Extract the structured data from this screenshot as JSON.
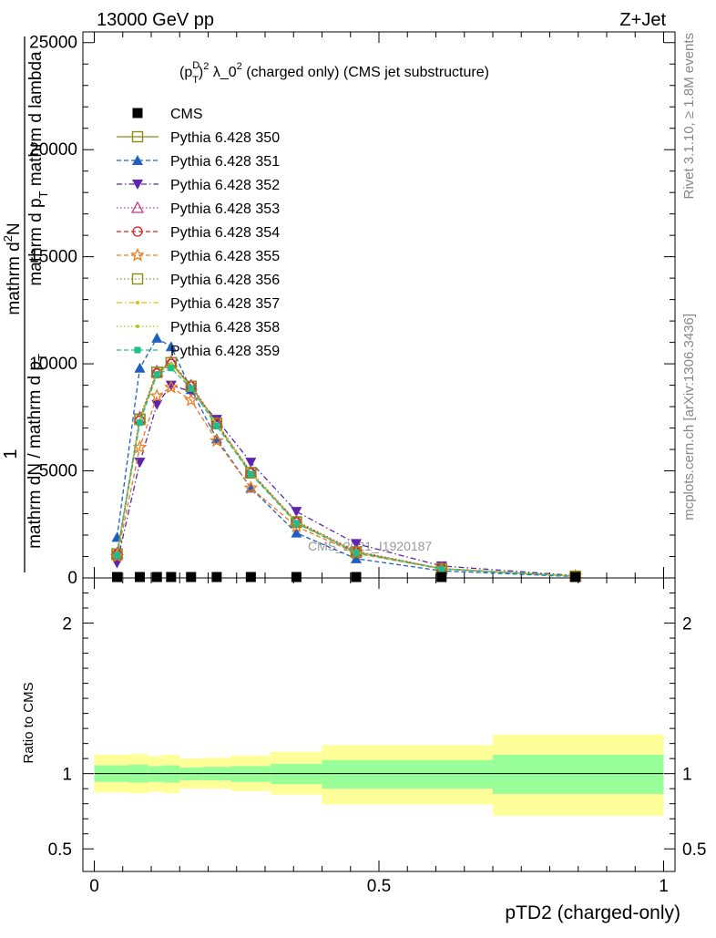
{
  "header": {
    "left": "13000 GeV pp",
    "right": "Z+Jet"
  },
  "side_labels": {
    "rivet": "Rivet 3.1.10, ≥ 1.8M events",
    "mcplots": "mcplots.cern.ch [arXiv:1306.3436]"
  },
  "watermark": "CMS_2021_I1920187",
  "chart_data": [
    {
      "type": "line",
      "title": "(p_T^D)^2 λ_0^2 (charged only) (CMS jet substructure)",
      "title_parts": {
        "open": "(p",
        "sup": "D",
        "sub": "T",
        "close": ")",
        "sup2": "2",
        "mid": " λ_0",
        "sup3": "2",
        "rest": " (charged only) (CMS jet substructure)"
      },
      "ylabel": "1 / mathrm dN / mathrm d p_T mathrm d p_T mathrm d lambda mathrm d^2N",
      "ylabel_parts": {
        "one": "1",
        "den": "mathrm dN / mathrm d p",
        "sub": "T",
        "num_a": "mathrm d",
        "num_sup": "2",
        "num_b": "N",
        "num_c": "mathrm d p",
        "num_sub": "T",
        "num_d": " mathrm d lambda"
      },
      "ylim": [
        0,
        25500
      ],
      "xlim": [
        -0.02,
        1.02
      ],
      "y_ticks": [
        0,
        5000,
        10000,
        15000,
        20000,
        25000
      ],
      "y_tick_labels": [
        "0",
        "5000",
        "10000",
        "15000",
        "20000",
        "25000"
      ],
      "legend_position": "top-left",
      "series": [
        {
          "name": "CMS",
          "color": "#000000",
          "marker": "filled-square",
          "line": "none",
          "x": [
            0.04,
            0.08,
            0.11,
            0.135,
            0.17,
            0.215,
            0.275,
            0.355,
            0.46,
            0.61,
            0.845
          ],
          "y": [
            0,
            0,
            0,
            0,
            0,
            0,
            0,
            0,
            0,
            0,
            0
          ]
        },
        {
          "name": "Pythia 6.428 350",
          "color": "#8c8c1a",
          "marker": "open-square",
          "line": "solid",
          "x": [
            0.04,
            0.08,
            0.11,
            0.135,
            0.17,
            0.215,
            0.275,
            0.355,
            0.46,
            0.61,
            0.845
          ],
          "y": [
            1100,
            7400,
            9600,
            10050,
            8950,
            7200,
            4900,
            2600,
            1200,
            430,
            80
          ]
        },
        {
          "name": "Pythia 6.428 351",
          "color": "#1f5fbf",
          "marker": "filled-triangle-up",
          "line": "dashed",
          "x": [
            0.04,
            0.08,
            0.11,
            0.135,
            0.17,
            0.215,
            0.275,
            0.355,
            0.46,
            0.61,
            0.845
          ],
          "y": [
            1900,
            9800,
            11200,
            10800,
            8800,
            6500,
            4200,
            2100,
            900,
            330,
            60
          ]
        },
        {
          "name": "Pythia 6.428 352",
          "color": "#5a26b0",
          "marker": "filled-triangle-down",
          "line": "dashdot",
          "x": [
            0.04,
            0.08,
            0.11,
            0.135,
            0.17,
            0.215,
            0.275,
            0.355,
            0.46,
            0.61,
            0.845
          ],
          "y": [
            700,
            5400,
            8100,
            9000,
            8700,
            7400,
            5400,
            3100,
            1600,
            560,
            110
          ]
        },
        {
          "name": "Pythia 6.428 353",
          "color": "#c7358f",
          "marker": "open-triangle-up",
          "line": "dotted",
          "x": [
            0.04,
            0.08,
            0.11,
            0.135,
            0.17,
            0.215,
            0.275,
            0.355,
            0.46,
            0.61,
            0.845
          ],
          "y": [
            1150,
            7500,
            9650,
            10100,
            9000,
            7250,
            4950,
            2650,
            1250,
            440,
            85
          ]
        },
        {
          "name": "Pythia 6.428 354",
          "color": "#d42020",
          "marker": "open-circle",
          "line": "dashed",
          "x": [
            0.04,
            0.08,
            0.11,
            0.135,
            0.17,
            0.215,
            0.275,
            0.355,
            0.46,
            0.61,
            0.845
          ],
          "y": [
            1100,
            7350,
            9550,
            10000,
            8950,
            7200,
            4900,
            2600,
            1200,
            430,
            80
          ]
        },
        {
          "name": "Pythia 6.428 355",
          "color": "#ef7a1f",
          "marker": "open-star",
          "line": "dashed",
          "x": [
            0.04,
            0.08,
            0.11,
            0.135,
            0.17,
            0.215,
            0.275,
            0.355,
            0.46,
            0.61,
            0.845
          ],
          "y": [
            1000,
            6100,
            8500,
            8900,
            8300,
            6400,
            4200,
            2400,
            1150,
            420,
            80
          ]
        },
        {
          "name": "Pythia 6.428 356",
          "color": "#8c8c1a",
          "marker": "open-square",
          "line": "dotted",
          "x": [
            0.04,
            0.08,
            0.11,
            0.135,
            0.17,
            0.215,
            0.275,
            0.355,
            0.46,
            0.61,
            0.845
          ],
          "y": [
            1120,
            7420,
            9600,
            10050,
            8950,
            7220,
            4920,
            2620,
            1220,
            435,
            80
          ]
        },
        {
          "name": "Pythia 6.428 357",
          "color": "#d9c21a",
          "marker": "small-dot",
          "line": "dashdot",
          "x": [
            0.04,
            0.08,
            0.11,
            0.135,
            0.17,
            0.215,
            0.275,
            0.355,
            0.46,
            0.61,
            0.845
          ],
          "y": [
            1100,
            7350,
            9550,
            10000,
            8900,
            7200,
            4900,
            2600,
            1200,
            430,
            80
          ]
        },
        {
          "name": "Pythia 6.428 358",
          "color": "#a8cc1f",
          "marker": "small-dot",
          "line": "dotted",
          "x": [
            0.04,
            0.08,
            0.11,
            0.135,
            0.17,
            0.215,
            0.275,
            0.355,
            0.46,
            0.61,
            0.845
          ],
          "y": [
            1100,
            7350,
            9550,
            10000,
            8900,
            7200,
            4900,
            2600,
            1200,
            430,
            80
          ]
        },
        {
          "name": "Pythia 6.428 359",
          "color": "#1fbf8c",
          "marker": "filled-square-small",
          "line": "dashed",
          "x": [
            0.04,
            0.08,
            0.11,
            0.135,
            0.17,
            0.215,
            0.275,
            0.355,
            0.46,
            0.61,
            0.845
          ],
          "y": [
            1050,
            7250,
            9500,
            9800,
            8850,
            7100,
            4850,
            2550,
            1180,
            420,
            78
          ]
        }
      ]
    },
    {
      "type": "area",
      "xlabel": "pTD2 (charged-only)",
      "ylabel": "Ratio to CMS",
      "ylim": [
        0.35,
        2.3
      ],
      "xlim": [
        -0.02,
        1.02
      ],
      "y_ticks": [
        0.5,
        1,
        2
      ],
      "y_tick_labels": [
        "0.5",
        "1",
        "2"
      ],
      "x_ticks": [
        0,
        0.5,
        1
      ],
      "x_tick_labels": [
        "0",
        "0.5",
        "1"
      ],
      "reference": 1,
      "bins": [
        {
          "x0": 0.0,
          "x1": 0.06,
          "inner": [
            0.945,
            1.055
          ],
          "outer": [
            0.875,
            1.125
          ]
        },
        {
          "x0": 0.06,
          "x1": 0.095,
          "inner": [
            0.94,
            1.06
          ],
          "outer": [
            0.87,
            1.13
          ]
        },
        {
          "x0": 0.095,
          "x1": 0.12,
          "inner": [
            0.945,
            1.05
          ],
          "outer": [
            0.88,
            1.115
          ]
        },
        {
          "x0": 0.12,
          "x1": 0.15,
          "inner": [
            0.94,
            1.055
          ],
          "outer": [
            0.87,
            1.125
          ]
        },
        {
          "x0": 0.15,
          "x1": 0.19,
          "inner": [
            0.955,
            1.04
          ],
          "outer": [
            0.9,
            1.1
          ]
        },
        {
          "x0": 0.19,
          "x1": 0.24,
          "inner": [
            0.955,
            1.045
          ],
          "outer": [
            0.9,
            1.105
          ]
        },
        {
          "x0": 0.24,
          "x1": 0.31,
          "inner": [
            0.945,
            1.05
          ],
          "outer": [
            0.885,
            1.12
          ]
        },
        {
          "x0": 0.31,
          "x1": 0.4,
          "inner": [
            0.93,
            1.065
          ],
          "outer": [
            0.86,
            1.145
          ]
        },
        {
          "x0": 0.4,
          "x1": 0.52,
          "inner": [
            0.9,
            1.09
          ],
          "outer": [
            0.795,
            1.19
          ]
        },
        {
          "x0": 0.52,
          "x1": 0.7,
          "inner": [
            0.9,
            1.09
          ],
          "outer": [
            0.795,
            1.19
          ]
        },
        {
          "x0": 0.7,
          "x1": 1.0,
          "inner": [
            0.865,
            1.125
          ],
          "outer": [
            0.72,
            1.26
          ]
        }
      ],
      "band_colors": {
        "inner": "#99ff99",
        "outer": "#ffff99"
      }
    }
  ]
}
